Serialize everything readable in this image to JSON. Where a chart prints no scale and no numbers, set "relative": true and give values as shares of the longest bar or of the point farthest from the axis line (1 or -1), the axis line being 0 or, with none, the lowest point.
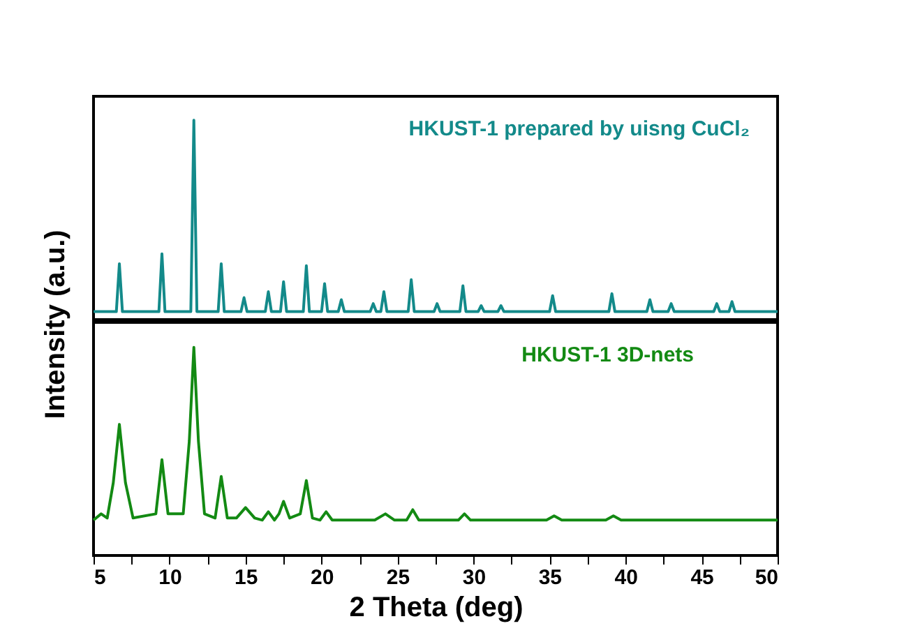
{
  "chart_data": [
    {
      "type": "line",
      "relative": true,
      "ylabel": "Intensity (a.u.)",
      "xlim": [
        5,
        50
      ],
      "tick_labels": false,
      "series": [
        {
          "name": "HKUST-1 prepared by uisng CuCl₂",
          "color": "#138a8a",
          "x": [
            5,
            6.5,
            6.7,
            6.9,
            9.3,
            9.5,
            9.7,
            11.4,
            11.6,
            11.8,
            13.2,
            13.4,
            13.6,
            14.7,
            14.9,
            15.1,
            16.3,
            16.5,
            16.7,
            17.3,
            17.5,
            17.7,
            18.8,
            19.0,
            19.2,
            20.0,
            20.2,
            20.4,
            21.1,
            21.3,
            21.5,
            23.2,
            23.4,
            23.6,
            23.9,
            24.1,
            24.3,
            25.7,
            25.9,
            26.1,
            27.4,
            27.6,
            27.8,
            29.1,
            29.3,
            29.5,
            30.3,
            30.5,
            30.7,
            31.6,
            31.8,
            32.0,
            35.0,
            35.2,
            35.4,
            38.9,
            39.1,
            39.3,
            41.4,
            41.6,
            41.8,
            42.8,
            43.0,
            43.2,
            45.8,
            46.0,
            46.2,
            46.8,
            47.0,
            47.2,
            50
          ],
          "values": [
            0.04,
            0.04,
            0.28,
            0.04,
            0.04,
            0.33,
            0.04,
            0.04,
            1,
            0.04,
            0.04,
            0.28,
            0.04,
            0.04,
            0.11,
            0.04,
            0.04,
            0.14,
            0.04,
            0.04,
            0.19,
            0.04,
            0.04,
            0.27,
            0.04,
            0.04,
            0.18,
            0.04,
            0.04,
            0.1,
            0.04,
            0.04,
            0.08,
            0.04,
            0.04,
            0.14,
            0.04,
            0.04,
            0.2,
            0.04,
            0.04,
            0.08,
            0.04,
            0.04,
            0.17,
            0.04,
            0.04,
            0.07,
            0.04,
            0.04,
            0.07,
            0.04,
            0.04,
            0.12,
            0.04,
            0.04,
            0.13,
            0.04,
            0.04,
            0.1,
            0.04,
            0.04,
            0.08,
            0.04,
            0.04,
            0.08,
            0.04,
            0.04,
            0.09,
            0.04,
            0.04
          ]
        }
      ]
    },
    {
      "type": "line",
      "relative": true,
      "xlabel": "2 Theta (deg)",
      "xlim": [
        5,
        50
      ],
      "tick_labels": "x",
      "xticks": [
        5,
        {
          "value": 7.5,
          "label": null
        },
        10,
        {
          "value": 12.5,
          "label": null
        },
        15,
        {
          "value": 17.5,
          "label": null
        },
        20,
        {
          "value": 22.5,
          "label": null
        },
        25,
        {
          "value": 27.5,
          "label": null
        },
        30,
        {
          "value": 32.5,
          "label": null
        },
        35,
        {
          "value": 37.5,
          "label": null
        },
        40,
        {
          "value": 42.5,
          "label": null
        },
        45,
        {
          "value": 47.5,
          "label": null
        },
        50
      ],
      "series": [
        {
          "name": "HKUST-1 3D-nets",
          "color": "#138a13",
          "x": [
            5,
            5.5,
            5.9,
            6.3,
            6.7,
            7.1,
            7.6,
            9.1,
            9.5,
            9.9,
            10.9,
            11.3,
            11.6,
            11.9,
            12.3,
            13.0,
            13.4,
            13.8,
            14.4,
            15.0,
            15.6,
            16.1,
            16.5,
            16.9,
            17.2,
            17.5,
            17.9,
            18.6,
            19.0,
            19.4,
            19.9,
            20.3,
            20.7,
            23.5,
            24.2,
            24.8,
            25.6,
            26.0,
            26.4,
            29.0,
            29.4,
            29.8,
            34.8,
            35.3,
            35.8,
            38.7,
            39.2,
            39.7,
            50
          ],
          "values": [
            0.17,
            0.2,
            0.18,
            0.35,
            0.63,
            0.35,
            0.18,
            0.2,
            0.46,
            0.2,
            0.2,
            0.55,
            1,
            0.55,
            0.2,
            0.18,
            0.38,
            0.18,
            0.18,
            0.23,
            0.18,
            0.17,
            0.21,
            0.17,
            0.2,
            0.26,
            0.18,
            0.2,
            0.36,
            0.18,
            0.17,
            0.21,
            0.17,
            0.17,
            0.2,
            0.17,
            0.17,
            0.22,
            0.17,
            0.17,
            0.2,
            0.17,
            0.17,
            0.19,
            0.17,
            0.17,
            0.19,
            0.17,
            0.17
          ]
        }
      ]
    }
  ]
}
